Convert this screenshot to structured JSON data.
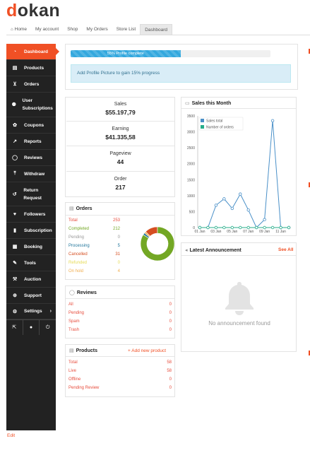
{
  "brand": {
    "first_letter": "d",
    "rest": "okan"
  },
  "nav": [
    {
      "label": "Home",
      "active": false
    },
    {
      "label": "My account",
      "active": false
    },
    {
      "label": "Shop",
      "active": false
    },
    {
      "label": "My Orders",
      "active": false
    },
    {
      "label": "Store List",
      "active": false
    },
    {
      "label": "Dashboard",
      "active": true
    }
  ],
  "sidebar": {
    "items": [
      {
        "label": "Dashboard",
        "icon": "dashboard-icon"
      },
      {
        "label": "Products",
        "icon": "briefcase-icon"
      },
      {
        "label": "Orders",
        "icon": "cart-icon"
      },
      {
        "label": "User Subscriptions",
        "icon": "users-icon"
      },
      {
        "label": "Coupons",
        "icon": "gift-icon"
      },
      {
        "label": "Reports",
        "icon": "chart-icon"
      },
      {
        "label": "Reviews",
        "icon": "comments-icon"
      },
      {
        "label": "Withdraw",
        "icon": "upload-icon"
      },
      {
        "label": "Return Request",
        "icon": "undo-icon"
      },
      {
        "label": "Followers",
        "icon": "heart-icon"
      },
      {
        "label": "Subscription",
        "icon": "book-icon"
      },
      {
        "label": "Booking",
        "icon": "calendar-icon"
      },
      {
        "label": "Tools",
        "icon": "wrench-icon"
      },
      {
        "label": "Auction",
        "icon": "gavel-icon"
      },
      {
        "label": "Support",
        "icon": "lifebuoy-icon"
      },
      {
        "label": "Settings",
        "icon": "gear-icon"
      }
    ],
    "settings_chevron": "›"
  },
  "edit_link": "Edit",
  "profile": {
    "progress_label": "55% Profile complete",
    "progress": 0.55,
    "tip": "Add Profile Picture to gain 15% progress"
  },
  "stats": [
    {
      "label": "Sales",
      "value": "$55.197,79"
    },
    {
      "label": "Earning",
      "value": "$41.335,58"
    },
    {
      "label": "Pageview",
      "value": "44"
    },
    {
      "label": "Order",
      "value": "217"
    }
  ],
  "orders": {
    "title": "Orders",
    "rows": [
      {
        "label": "Total",
        "value": "253",
        "color": "#e74c3c"
      },
      {
        "label": "Completed",
        "value": "212",
        "color": "#73a724"
      },
      {
        "label": "Pending",
        "value": "0",
        "color": "#999999"
      },
      {
        "label": "Processing",
        "value": "5",
        "color": "#21759b"
      },
      {
        "label": "Cancelled",
        "value": "31",
        "color": "#d54e21"
      },
      {
        "label": "Refunded",
        "value": "0",
        "color": "#e6db55"
      },
      {
        "label": "On hold",
        "value": "4",
        "color": "#f0ad4e"
      }
    ]
  },
  "reviews": {
    "title": "Reviews",
    "rows": [
      {
        "label": "All",
        "value": "0"
      },
      {
        "label": "Pending",
        "value": "0"
      },
      {
        "label": "Spam",
        "value": "0"
      },
      {
        "label": "Trash",
        "value": "0"
      }
    ]
  },
  "products": {
    "title": "Products",
    "add_label": "+ Add new product",
    "rows": [
      {
        "label": "Total",
        "value": "58"
      },
      {
        "label": "Live",
        "value": "58"
      },
      {
        "label": "Offline",
        "value": "0"
      },
      {
        "label": "Pending Review",
        "value": "0"
      }
    ]
  },
  "sales_chart": {
    "title": "Sales this Month"
  },
  "chart_data": {
    "type": "line",
    "title": "Sales this Month",
    "x": [
      "01 Jan",
      "02 Jan",
      "03 Jan",
      "04 Jan",
      "05 Jan",
      "06 Jan",
      "07 Jan",
      "08 Jan",
      "09 Jan",
      "10 Jan",
      "11 Jan",
      "12 Jan"
    ],
    "x_tick_labels": [
      "01 Jan",
      "03 Jan",
      "05 Jan",
      "07 Jan",
      "09 Jan",
      "11 Jan"
    ],
    "series": [
      {
        "name": "Sales total",
        "color": "#4a90c8",
        "values": [
          0,
          0,
          700,
          900,
          600,
          1050,
          550,
          0,
          250,
          3350,
          0,
          0
        ]
      },
      {
        "name": "Number of orders",
        "color": "#27ae8a",
        "values": [
          0,
          0,
          0,
          0,
          0,
          0,
          0,
          0,
          0,
          0,
          0,
          0
        ]
      }
    ],
    "y_ticks": [
      0,
      500,
      1000,
      1500,
      2000,
      2500,
      3000,
      3500
    ],
    "ylim": [
      0,
      3500
    ],
    "legend": "top-left",
    "grid": false
  },
  "announcement": {
    "title": "Latest Announcement",
    "see_all": "See All",
    "empty_text": "No announcement found"
  },
  "donut": {
    "completed": 212,
    "cancelled": 31,
    "processing": 5,
    "on_hold": 4
  }
}
